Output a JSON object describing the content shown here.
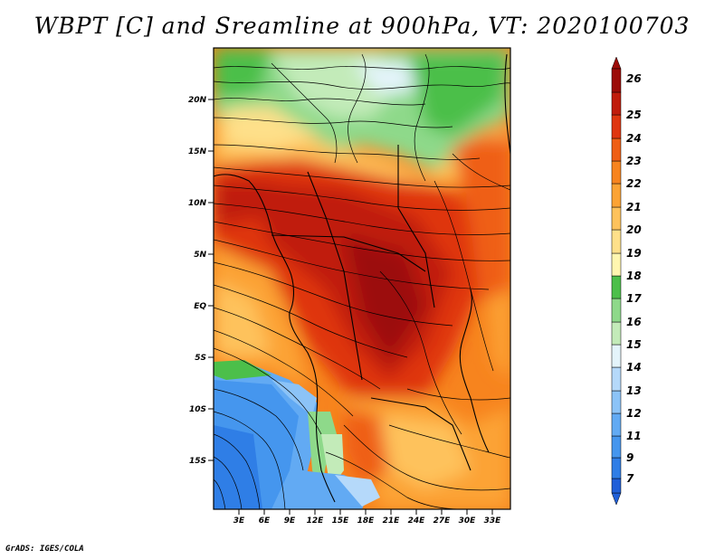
{
  "title": "WBPT [C] and Sreamline at 900hPa, VT: 2020100703",
  "credit": "GrADS: IGES/COLA",
  "map": {
    "lat_labels": [
      "20N",
      "15N",
      "10N",
      "5N",
      "EQ",
      "5S",
      "10S",
      "15S"
    ],
    "lon_labels": [
      "3E",
      "6E",
      "9E",
      "12E",
      "15E",
      "18E",
      "21E",
      "24E",
      "27E",
      "30E",
      "33E"
    ],
    "lon_range": [
      0,
      35
    ],
    "lat_range": [
      -20,
      24
    ]
  },
  "colorbar": {
    "levels": [
      "7",
      "9",
      "11",
      "12",
      "13",
      "14",
      "15",
      "16",
      "17",
      "18",
      "19",
      "20",
      "21",
      "22",
      "23",
      "24",
      "25",
      "26"
    ],
    "colors": [
      "#1f5fd8",
      "#2f7ee6",
      "#4596ee",
      "#62aaf3",
      "#8cc3f7",
      "#b5d9fa",
      "#e4f4fb",
      "#c3ebb9",
      "#8ed98a",
      "#4cbf4a",
      "#fff6b0",
      "#fee08a",
      "#fec25c",
      "#fca334",
      "#f7841e",
      "#ef5f14",
      "#df3610",
      "#c01c0c",
      "#9c0c08"
    ]
  }
}
